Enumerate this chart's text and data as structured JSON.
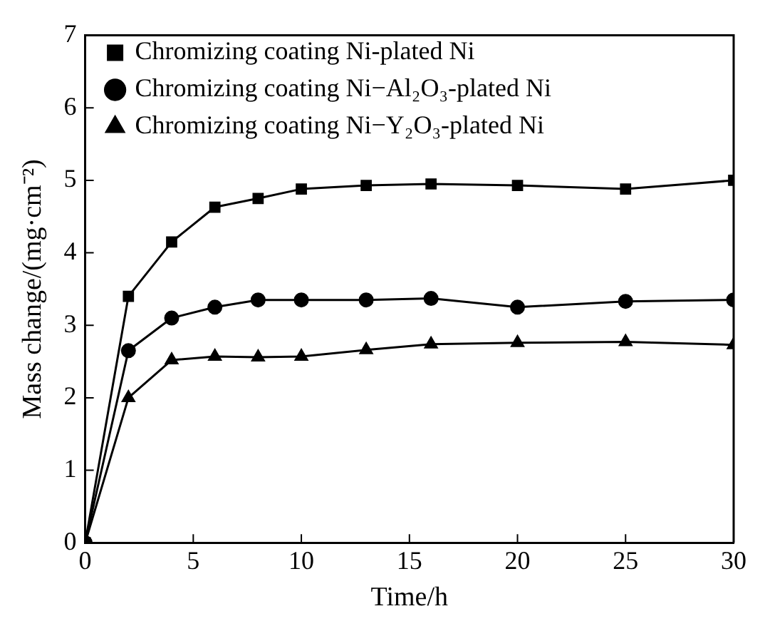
{
  "chart_data": {
    "type": "line",
    "xlabel": "Time/h",
    "ylabel": "Mass change/(mg·cm⁻²)",
    "x": [
      0,
      2,
      4,
      6,
      8,
      10,
      13,
      16,
      20,
      25,
      30
    ],
    "series": [
      {
        "name": "Chromizing coating Ni-plated Ni",
        "color": "#000000",
        "marker": "square",
        "values": [
          0,
          3.4,
          4.15,
          4.63,
          4.75,
          4.88,
          4.93,
          4.95,
          4.93,
          4.88,
          5.0
        ]
      },
      {
        "name": "Chromizing coating Ni−Al₂O₃-plated Ni",
        "color": "#000000",
        "marker": "circle",
        "values": [
          0,
          2.65,
          3.1,
          3.25,
          3.35,
          3.35,
          3.35,
          3.37,
          3.25,
          3.33,
          3.35
        ]
      },
      {
        "name": "Chromizing coating Ni−Y₂O₃-plated Ni",
        "color": "#000000",
        "marker": "triangle",
        "values": [
          0,
          2.0,
          2.52,
          2.57,
          2.56,
          2.57,
          2.66,
          2.74,
          2.76,
          2.77,
          2.73
        ]
      }
    ],
    "xlim": [
      0,
      30
    ],
    "xticks": [
      0,
      5,
      10,
      15,
      20,
      25,
      30
    ],
    "ylim": [
      0,
      7
    ],
    "yticks": [
      0,
      1,
      2,
      3,
      4,
      5,
      6,
      7
    ],
    "legend": "top left",
    "grid": false,
    "line_style": "solid"
  }
}
